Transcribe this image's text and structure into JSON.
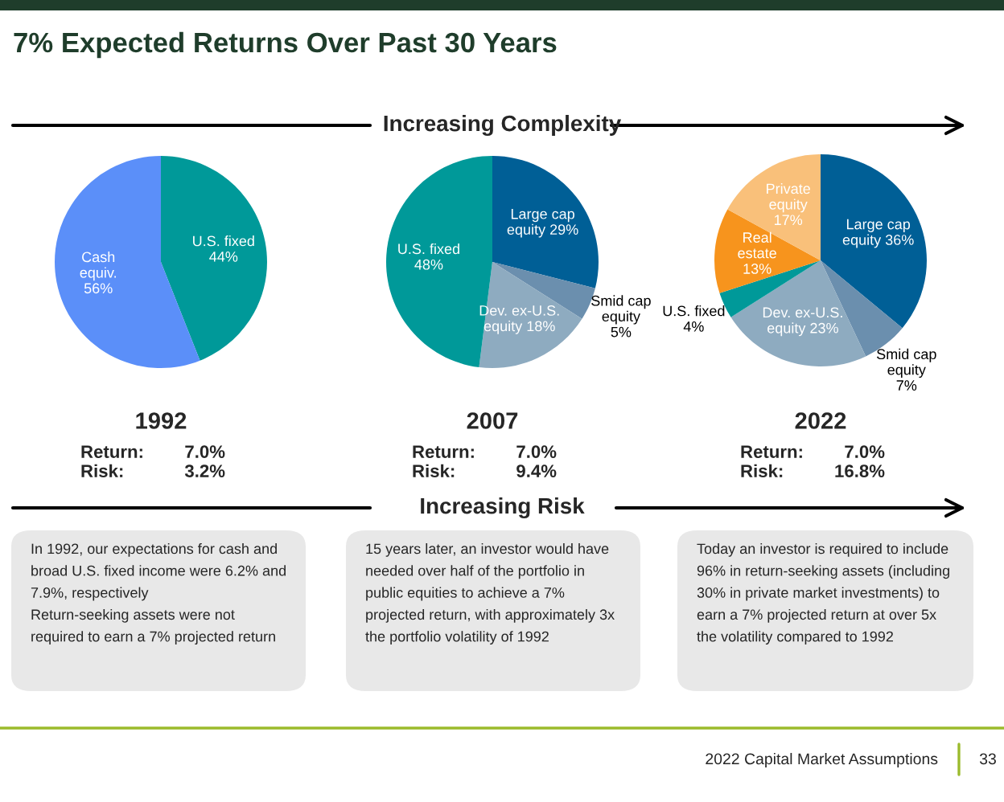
{
  "chart_data": [
    {
      "type": "other",
      "title": "7% Expected Returns Over Past 30 Years",
      "annotations": [
        "Increasing Complexity",
        "Increasing Risk",
        "2022 Capital Market Assumptions",
        "33"
      ]
    },
    {
      "type": "pie",
      "title": "1992",
      "categories": [
        "U.S. fixed",
        "Cash equiv."
      ],
      "values": [
        44,
        56
      ],
      "value_labels": [
        "44%",
        "56%"
      ],
      "colors": [
        "#009999",
        "#5b8ff9"
      ],
      "annotations": [
        "Return:",
        "7.0%",
        "Risk:",
        "3.2%",
        "In 1992, our expectations for cash and broad U.S. fixed income were 6.2% and 7.9%, respectively\nReturn-seeking assets were not required to earn a 7% projected return"
      ]
    },
    {
      "type": "pie",
      "title": "2007",
      "categories": [
        "Large cap equity",
        "Smid cap equity",
        "Dev. ex-U.S. equity",
        "U.S. fixed"
      ],
      "values": [
        29,
        5,
        18,
        48
      ],
      "value_labels": [
        "29%",
        "5%",
        "18%",
        "48%"
      ],
      "colors": [
        "#005f96",
        "#6b8fae",
        "#8eabc0",
        "#009999"
      ],
      "annotations": [
        "Return:",
        "7.0%",
        "Risk:",
        "9.4%",
        "15 years later, an investor would have needed over half of the portfolio in public equities to achieve a 7% projected return, with approximately 3x the portfolio volatility of 1992"
      ]
    },
    {
      "type": "pie",
      "title": "2022",
      "categories": [
        "Large cap equity",
        "Smid cap equity",
        "Dev. ex-U.S. equity",
        "U.S. fixed",
        "Real estate",
        "Private equity"
      ],
      "values": [
        36,
        7,
        23,
        4,
        13,
        17
      ],
      "value_labels": [
        "36%",
        "7%",
        "23%",
        "4%",
        "13%",
        "17%"
      ],
      "colors": [
        "#005f96",
        "#6b8fae",
        "#8eabc0",
        "#009999",
        "#f7941d",
        "#f9c07a"
      ],
      "annotations": [
        "Return:",
        "7.0%",
        "Risk:",
        "16.8%",
        "Today an investor is required to include 96% in return-seeking assets (including 30% in private market investments) to earn a 7% projected return at over 5x the volatility compared to 1992"
      ]
    }
  ]
}
